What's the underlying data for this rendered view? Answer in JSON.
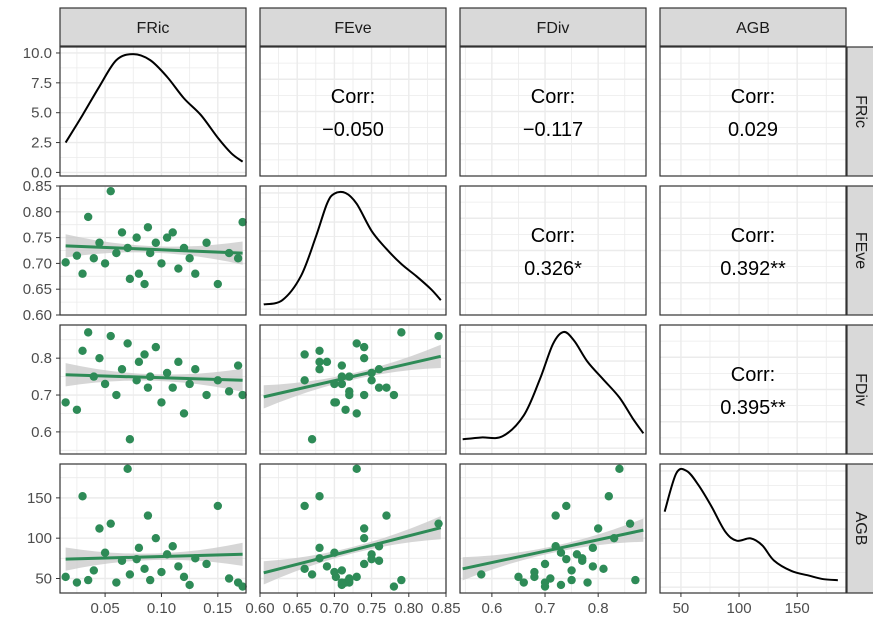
{
  "chart_data": {
    "type": "scatter",
    "panel_labels": [
      "FRic",
      "FEve",
      "FDiv",
      "AGB"
    ],
    "colors": {
      "point": "#2e8b57",
      "line": "#2e8b57",
      "band": "#c8c8c8",
      "strip": "#d9d9d9",
      "grid": "#ebebeb",
      "density": "#000000"
    },
    "axes": {
      "FRic": {
        "lim": [
          0.01,
          0.175
        ],
        "ticks": [
          0.05,
          0.1,
          0.15
        ],
        "labels": [
          "0.05",
          "0.10",
          "0.15"
        ]
      },
      "FEve": {
        "lim": [
          0.6,
          0.85
        ],
        "ticks": [
          0.6,
          0.65,
          0.7,
          0.75,
          0.8,
          0.85
        ],
        "labels": [
          "0.60",
          "0.65",
          "0.70",
          "0.75",
          "0.80",
          "0.85"
        ]
      },
      "FDiv": {
        "lim": [
          0.54,
          0.89
        ],
        "ticks": [
          0.6,
          0.7,
          0.8
        ],
        "labels": [
          "0.6",
          "0.7",
          "0.8"
        ]
      },
      "AGB": {
        "lim": [
          32,
          192
        ],
        "ticks": [
          50,
          100,
          150
        ],
        "labels": [
          "50",
          "100",
          "150"
        ]
      }
    },
    "density_axis": {
      "lim": [
        -0.3,
        10.5
      ],
      "ticks": [
        0,
        2.5,
        5,
        7.5,
        10
      ],
      "labels": [
        "0.0",
        "2.5",
        "5.0",
        "7.5",
        "10.0"
      ]
    },
    "correlations": [
      {
        "row": "FRic",
        "col": "FEve",
        "label": "Corr:",
        "value": "−0.050"
      },
      {
        "row": "FRic",
        "col": "FDiv",
        "label": "Corr:",
        "value": "−0.117"
      },
      {
        "row": "FRic",
        "col": "AGB",
        "label": "Corr:",
        "value": "0.029"
      },
      {
        "row": "FEve",
        "col": "FDiv",
        "label": "Corr:",
        "value": "0.326*"
      },
      {
        "row": "FEve",
        "col": "AGB",
        "label": "Corr:",
        "value": "0.392**"
      },
      {
        "row": "FDiv",
        "col": "AGB",
        "label": "Corr:",
        "value": "0.395**"
      }
    ],
    "densities": {
      "FRic": [
        [
          0.015,
          2.5
        ],
        [
          0.03,
          4.8
        ],
        [
          0.045,
          7.2
        ],
        [
          0.06,
          9.4
        ],
        [
          0.075,
          9.9
        ],
        [
          0.09,
          9.4
        ],
        [
          0.105,
          8.0
        ],
        [
          0.12,
          6.2
        ],
        [
          0.135,
          4.8
        ],
        [
          0.15,
          2.9
        ],
        [
          0.162,
          1.6
        ],
        [
          0.172,
          0.9
        ]
      ],
      "FEve": [
        [
          0.605,
          0.08
        ],
        [
          0.63,
          0.15
        ],
        [
          0.655,
          0.55
        ],
        [
          0.675,
          1.2
        ],
        [
          0.69,
          1.75
        ],
        [
          0.7,
          1.92
        ],
        [
          0.715,
          1.93
        ],
        [
          0.73,
          1.75
        ],
        [
          0.75,
          1.3
        ],
        [
          0.77,
          1.0
        ],
        [
          0.79,
          0.75
        ],
        [
          0.81,
          0.55
        ],
        [
          0.83,
          0.33
        ],
        [
          0.843,
          0.15
        ]
      ],
      "FDiv": [
        [
          0.545,
          0.15
        ],
        [
          0.58,
          0.18
        ],
        [
          0.62,
          0.2
        ],
        [
          0.66,
          0.55
        ],
        [
          0.69,
          1.15
        ],
        [
          0.715,
          1.75
        ],
        [
          0.735,
          1.95
        ],
        [
          0.755,
          1.8
        ],
        [
          0.78,
          1.45
        ],
        [
          0.81,
          1.15
        ],
        [
          0.84,
          0.85
        ],
        [
          0.865,
          0.5
        ],
        [
          0.885,
          0.25
        ]
      ],
      "AGB": [
        [
          36,
          0.65
        ],
        [
          46,
          0.98
        ],
        [
          55,
          1.0
        ],
        [
          65,
          0.88
        ],
        [
          76,
          0.7
        ],
        [
          88,
          0.48
        ],
        [
          98,
          0.4
        ],
        [
          110,
          0.42
        ],
        [
          120,
          0.36
        ],
        [
          130,
          0.23
        ],
        [
          145,
          0.14
        ],
        [
          160,
          0.1
        ],
        [
          172,
          0.07
        ],
        [
          185,
          0.06
        ]
      ]
    },
    "scatter": {
      "FRic": [
        0.015,
        0.025,
        0.03,
        0.035,
        0.04,
        0.045,
        0.05,
        0.055,
        0.06,
        0.065,
        0.07,
        0.072,
        0.078,
        0.08,
        0.085,
        0.088,
        0.09,
        0.095,
        0.1,
        0.105,
        0.11,
        0.115,
        0.12,
        0.125,
        0.13,
        0.14,
        0.15,
        0.16,
        0.168,
        0.172
      ],
      "FEve": [
        0.702,
        0.715,
        0.68,
        0.79,
        0.71,
        0.74,
        0.7,
        0.84,
        0.72,
        0.76,
        0.73,
        0.67,
        0.75,
        0.68,
        0.66,
        0.77,
        0.72,
        0.74,
        0.7,
        0.75,
        0.76,
        0.69,
        0.73,
        0.71,
        0.68,
        0.74,
        0.66,
        0.72,
        0.71,
        0.78
      ],
      "FDiv": [
        0.68,
        0.66,
        0.82,
        0.87,
        0.75,
        0.8,
        0.73,
        0.86,
        0.7,
        0.77,
        0.84,
        0.58,
        0.74,
        0.79,
        0.81,
        0.72,
        0.75,
        0.83,
        0.68,
        0.76,
        0.72,
        0.79,
        0.65,
        0.73,
        0.77,
        0.7,
        0.74,
        0.71,
        0.78,
        0.7
      ],
      "AGB": [
        52,
        45,
        152,
        48,
        60,
        112,
        82,
        118,
        45,
        72,
        186,
        55,
        74,
        88,
        62,
        128,
        48,
        100,
        58,
        80,
        90,
        65,
        52,
        42,
        75,
        68,
        140,
        50,
        45,
        40
      ]
    },
    "fits": {
      "FRic~FEve": {
        "x": [
          0.015,
          0.172
        ],
        "y": [
          0.734,
          0.72
        ]
      },
      "FRic~FDiv": {
        "x": [
          0.015,
          0.172
        ],
        "y": [
          0.755,
          0.74
        ]
      },
      "FRic~AGB": {
        "x": [
          0.015,
          0.172
        ],
        "y": [
          74,
          80
        ]
      },
      "FEve~FDiv": {
        "x": [
          0.605,
          0.843
        ],
        "y": [
          0.695,
          0.805
        ]
      },
      "FEve~AGB": {
        "x": [
          0.605,
          0.843
        ],
        "y": [
          57,
          113
        ]
      },
      "FDiv~AGB": {
        "x": [
          0.545,
          0.885
        ],
        "y": [
          62,
          110
        ]
      }
    }
  }
}
